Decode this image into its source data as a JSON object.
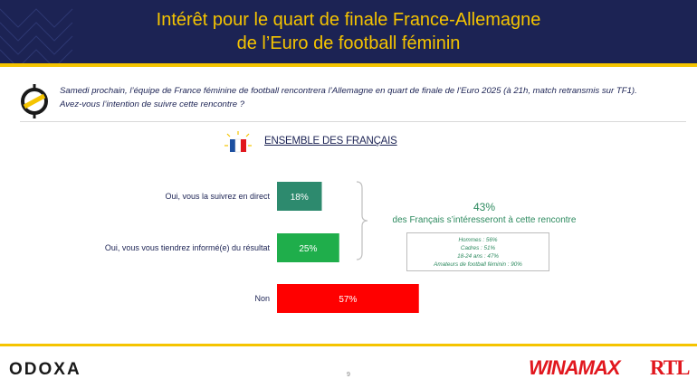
{
  "header": {
    "title_line1": "Intérêt pour le quart de finale France-Allemagne",
    "title_line2": "de l’Euro de football féminin"
  },
  "question": {
    "line1": "Samedi prochain, l’équipe de France féminine de football rencontrera l’Allemagne en quart de finale de l’Euro 2025 (à 21h, match retransmis sur TF1).",
    "line2": "Avez-vous l’intention de suivre cette rencontre ?"
  },
  "section": {
    "title": "ENSEMBLE DES FRANÇAIS"
  },
  "chart_data": {
    "type": "bar",
    "orientation": "horizontal",
    "categories": [
      "Oui, vous la suivrez en direct",
      "Oui, vous vous tiendrez informé(e) du résultat",
      "Non"
    ],
    "values": [
      18,
      25,
      57
    ],
    "value_labels": [
      "18%",
      "25%",
      "57%"
    ],
    "colors": [
      "#2d8a6e",
      "#1fae4b",
      "#ff0000"
    ],
    "unit": "%",
    "xlim": [
      0,
      100
    ]
  },
  "summary": {
    "total": "43%",
    "text": "des Français s’intéresseront à cette rencontre",
    "details": [
      "Hommes : 56%",
      "Cadres : 51%",
      "18-24 ans : 47%",
      "Amateurs de football féminin : 90%"
    ]
  },
  "footer": {
    "brand": "ODOXA",
    "page_number": "9",
    "partner1": "WINAMAX",
    "partner2": "RTL"
  },
  "colors": {
    "header_bg": "#1c2354",
    "accent_gold": "#f5c400",
    "summary_green": "#2d8a5f",
    "partner_red": "#e1171e"
  }
}
